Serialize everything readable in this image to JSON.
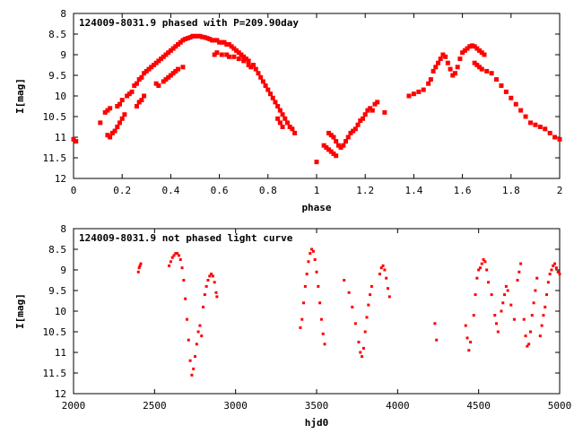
{
  "chart_data": [
    {
      "type": "scatter",
      "title": "124009-8031.9 phased with P=209.90day",
      "xlabel": "phase",
      "ylabel": "I[mag]",
      "xlim": [
        0,
        2
      ],
      "ylim": [
        12,
        8
      ],
      "y_inverted": true,
      "grid": false,
      "xticks": [
        "0",
        "0.2",
        "0.4",
        "0.6",
        "0.8",
        "1",
        "1.2",
        "1.4",
        "1.6",
        "1.8",
        "2"
      ],
      "yticks": [
        "8",
        "8.5",
        "9",
        "9.5",
        "10",
        "10.5",
        "11",
        "11.5",
        "12"
      ],
      "marker": "filled-square",
      "color": "#ff0000",
      "points": [
        [
          0.0,
          11.05
        ],
        [
          0.01,
          11.1
        ],
        [
          0.11,
          10.65
        ],
        [
          0.13,
          10.4
        ],
        [
          0.14,
          10.35
        ],
        [
          0.15,
          10.3
        ],
        [
          0.14,
          10.95
        ],
        [
          0.15,
          11.0
        ],
        [
          0.16,
          10.9
        ],
        [
          0.17,
          10.85
        ],
        [
          0.18,
          10.25
        ],
        [
          0.19,
          10.2
        ],
        [
          0.18,
          10.75
        ],
        [
          0.19,
          10.65
        ],
        [
          0.2,
          10.55
        ],
        [
          0.21,
          10.45
        ],
        [
          0.2,
          10.1
        ],
        [
          0.22,
          10.0
        ],
        [
          0.23,
          9.95
        ],
        [
          0.24,
          9.9
        ],
        [
          0.25,
          9.75
        ],
        [
          0.26,
          9.7
        ],
        [
          0.27,
          9.6
        ],
        [
          0.28,
          9.55
        ],
        [
          0.29,
          9.45
        ],
        [
          0.3,
          9.4
        ],
        [
          0.26,
          10.25
        ],
        [
          0.27,
          10.15
        ],
        [
          0.28,
          10.1
        ],
        [
          0.29,
          10.0
        ],
        [
          0.31,
          9.35
        ],
        [
          0.32,
          9.3
        ],
        [
          0.33,
          9.25
        ],
        [
          0.34,
          9.2
        ],
        [
          0.35,
          9.15
        ],
        [
          0.36,
          9.1
        ],
        [
          0.37,
          9.05
        ],
        [
          0.38,
          9.0
        ],
        [
          0.39,
          8.95
        ],
        [
          0.4,
          8.9
        ],
        [
          0.34,
          9.7
        ],
        [
          0.35,
          9.75
        ],
        [
          0.37,
          9.65
        ],
        [
          0.38,
          9.6
        ],
        [
          0.39,
          9.55
        ],
        [
          0.4,
          9.5
        ],
        [
          0.41,
          9.45
        ],
        [
          0.42,
          9.4
        ],
        [
          0.43,
          9.35
        ],
        [
          0.45,
          9.3
        ],
        [
          0.41,
          8.85
        ],
        [
          0.42,
          8.8
        ],
        [
          0.43,
          8.75
        ],
        [
          0.44,
          8.7
        ],
        [
          0.45,
          8.65
        ],
        [
          0.46,
          8.62
        ],
        [
          0.47,
          8.6
        ],
        [
          0.48,
          8.58
        ],
        [
          0.49,
          8.55
        ],
        [
          0.5,
          8.55
        ],
        [
          0.51,
          8.55
        ],
        [
          0.52,
          8.55
        ],
        [
          0.53,
          8.57
        ],
        [
          0.54,
          8.58
        ],
        [
          0.55,
          8.6
        ],
        [
          0.56,
          8.62
        ],
        [
          0.57,
          8.65
        ],
        [
          0.58,
          8.65
        ],
        [
          0.59,
          8.65
        ],
        [
          0.6,
          8.7
        ],
        [
          0.61,
          8.7
        ],
        [
          0.62,
          8.7
        ],
        [
          0.63,
          8.75
        ],
        [
          0.64,
          8.75
        ],
        [
          0.65,
          8.8
        ],
        [
          0.66,
          8.85
        ],
        [
          0.67,
          8.9
        ],
        [
          0.68,
          8.95
        ],
        [
          0.69,
          9.0
        ],
        [
          0.7,
          9.05
        ],
        [
          0.58,
          9.0
        ],
        [
          0.59,
          8.95
        ],
        [
          0.61,
          9.0
        ],
        [
          0.63,
          9.0
        ],
        [
          0.64,
          9.05
        ],
        [
          0.66,
          9.05
        ],
        [
          0.68,
          9.1
        ],
        [
          0.7,
          9.15
        ],
        [
          0.72,
          9.25
        ],
        [
          0.73,
          9.3
        ],
        [
          0.71,
          9.1
        ],
        [
          0.72,
          9.15
        ],
        [
          0.74,
          9.25
        ],
        [
          0.75,
          9.35
        ],
        [
          0.76,
          9.45
        ],
        [
          0.77,
          9.55
        ],
        [
          0.78,
          9.65
        ],
        [
          0.79,
          9.75
        ],
        [
          0.8,
          9.85
        ],
        [
          0.81,
          9.95
        ],
        [
          0.82,
          10.05
        ],
        [
          0.83,
          10.15
        ],
        [
          0.84,
          10.25
        ],
        [
          0.85,
          10.35
        ],
        [
          0.86,
          10.45
        ],
        [
          0.87,
          10.55
        ],
        [
          0.88,
          10.65
        ],
        [
          0.89,
          10.75
        ],
        [
          0.9,
          10.8
        ],
        [
          0.91,
          10.9
        ],
        [
          0.84,
          10.55
        ],
        [
          0.85,
          10.65
        ],
        [
          0.86,
          10.75
        ],
        [
          1.0,
          11.6
        ],
        [
          1.03,
          11.2
        ],
        [
          1.04,
          11.25
        ],
        [
          1.05,
          11.3
        ],
        [
          1.06,
          11.35
        ],
        [
          1.07,
          11.4
        ],
        [
          1.08,
          11.45
        ],
        [
          1.05,
          10.9
        ],
        [
          1.06,
          10.95
        ],
        [
          1.07,
          11.0
        ],
        [
          1.08,
          11.1
        ],
        [
          1.09,
          11.2
        ],
        [
          1.1,
          11.25
        ],
        [
          1.11,
          11.2
        ],
        [
          1.12,
          11.1
        ],
        [
          1.13,
          11.0
        ],
        [
          1.14,
          10.9
        ],
        [
          1.15,
          10.85
        ],
        [
          1.16,
          10.8
        ],
        [
          1.17,
          10.7
        ],
        [
          1.18,
          10.6
        ],
        [
          1.19,
          10.55
        ],
        [
          1.2,
          10.45
        ],
        [
          1.21,
          10.35
        ],
        [
          1.22,
          10.3
        ],
        [
          1.23,
          10.35
        ],
        [
          1.24,
          10.2
        ],
        [
          1.25,
          10.15
        ],
        [
          1.28,
          10.4
        ],
        [
          1.38,
          10.0
        ],
        [
          1.4,
          9.95
        ],
        [
          1.42,
          9.9
        ],
        [
          1.44,
          9.85
        ],
        [
          1.46,
          9.7
        ],
        [
          1.47,
          9.6
        ],
        [
          1.48,
          9.4
        ],
        [
          1.49,
          9.3
        ],
        [
          1.5,
          9.2
        ],
        [
          1.51,
          9.1
        ],
        [
          1.52,
          9.0
        ],
        [
          1.53,
          9.05
        ],
        [
          1.54,
          9.2
        ],
        [
          1.55,
          9.35
        ],
        [
          1.56,
          9.5
        ],
        [
          1.57,
          9.45
        ],
        [
          1.58,
          9.3
        ],
        [
          1.59,
          9.1
        ],
        [
          1.6,
          8.95
        ],
        [
          1.61,
          8.9
        ],
        [
          1.62,
          8.85
        ],
        [
          1.63,
          8.8
        ],
        [
          1.64,
          8.78
        ],
        [
          1.65,
          8.8
        ],
        [
          1.66,
          8.85
        ],
        [
          1.67,
          8.9
        ],
        [
          1.68,
          8.95
        ],
        [
          1.69,
          9.0
        ],
        [
          1.65,
          9.2
        ],
        [
          1.66,
          9.25
        ],
        [
          1.67,
          9.3
        ],
        [
          1.68,
          9.35
        ],
        [
          1.7,
          9.4
        ],
        [
          1.72,
          9.45
        ],
        [
          1.74,
          9.6
        ],
        [
          1.76,
          9.75
        ],
        [
          1.78,
          9.9
        ],
        [
          1.8,
          10.05
        ],
        [
          1.82,
          10.2
        ],
        [
          1.84,
          10.35
        ],
        [
          1.86,
          10.5
        ],
        [
          1.88,
          10.65
        ],
        [
          1.9,
          10.7
        ],
        [
          1.92,
          10.75
        ],
        [
          1.94,
          10.8
        ],
        [
          1.96,
          10.9
        ],
        [
          1.98,
          11.0
        ],
        [
          2.0,
          11.05
        ]
      ]
    },
    {
      "type": "scatter",
      "title": "124009-8031.9 not phased light curve",
      "xlabel": "hjd0",
      "ylabel": "I[mag]",
      "xlim": [
        2000,
        5000
      ],
      "ylim": [
        12,
        8
      ],
      "y_inverted": true,
      "grid": false,
      "xticks": [
        "2000",
        "2500",
        "3000",
        "3500",
        "4000",
        "4500",
        "5000"
      ],
      "yticks": [
        "8",
        "8.5",
        "9",
        "9.5",
        "10",
        "10.5",
        "11",
        "11.5",
        "12"
      ],
      "marker": "small-diamond",
      "color": "#ff0000",
      "points": [
        [
          2400,
          9.05
        ],
        [
          2405,
          8.95
        ],
        [
          2410,
          8.9
        ],
        [
          2415,
          8.85
        ],
        [
          2590,
          8.9
        ],
        [
          2600,
          8.8
        ],
        [
          2610,
          8.7
        ],
        [
          2620,
          8.65
        ],
        [
          2630,
          8.6
        ],
        [
          2640,
          8.6
        ],
        [
          2650,
          8.65
        ],
        [
          2660,
          8.75
        ],
        [
          2670,
          8.95
        ],
        [
          2680,
          9.25
        ],
        [
          2690,
          9.7
        ],
        [
          2700,
          10.2
        ],
        [
          2710,
          10.7
        ],
        [
          2720,
          11.2
        ],
        [
          2730,
          11.55
        ],
        [
          2740,
          11.4
        ],
        [
          2750,
          11.1
        ],
        [
          2760,
          10.8
        ],
        [
          2770,
          10.5
        ],
        [
          2780,
          10.35
        ],
        [
          2790,
          10.6
        ],
        [
          2800,
          9.9
        ],
        [
          2810,
          9.6
        ],
        [
          2820,
          9.4
        ],
        [
          2830,
          9.25
        ],
        [
          2840,
          9.15
        ],
        [
          2850,
          9.1
        ],
        [
          2860,
          9.15
        ],
        [
          2870,
          9.3
        ],
        [
          2880,
          9.55
        ],
        [
          2885,
          9.65
        ],
        [
          3400,
          10.4
        ],
        [
          3410,
          10.2
        ],
        [
          3420,
          9.8
        ],
        [
          3430,
          9.4
        ],
        [
          3440,
          9.1
        ],
        [
          3450,
          8.8
        ],
        [
          3460,
          8.6
        ],
        [
          3470,
          8.5
        ],
        [
          3480,
          8.55
        ],
        [
          3490,
          8.75
        ],
        [
          3500,
          9.05
        ],
        [
          3510,
          9.4
        ],
        [
          3520,
          9.8
        ],
        [
          3530,
          10.2
        ],
        [
          3540,
          10.55
        ],
        [
          3550,
          10.8
        ],
        [
          3670,
          9.25
        ],
        [
          3700,
          9.55
        ],
        [
          3720,
          9.9
        ],
        [
          3740,
          10.3
        ],
        [
          3760,
          10.75
        ],
        [
          3770,
          11.0
        ],
        [
          3780,
          11.1
        ],
        [
          3790,
          10.9
        ],
        [
          3800,
          10.5
        ],
        [
          3810,
          10.15
        ],
        [
          3820,
          9.85
        ],
        [
          3830,
          9.6
        ],
        [
          3840,
          9.4
        ],
        [
          3890,
          9.1
        ],
        [
          3900,
          8.95
        ],
        [
          3910,
          8.9
        ],
        [
          3920,
          9.0
        ],
        [
          3930,
          9.2
        ],
        [
          3940,
          9.45
        ],
        [
          3950,
          9.65
        ],
        [
          4230,
          10.3
        ],
        [
          4240,
          10.7
        ],
        [
          4420,
          10.35
        ],
        [
          4430,
          10.65
        ],
        [
          4440,
          10.95
        ],
        [
          4450,
          10.75
        ],
        [
          4470,
          10.1
        ],
        [
          4480,
          9.6
        ],
        [
          4490,
          9.2
        ],
        [
          4500,
          9.0
        ],
        [
          4510,
          8.95
        ],
        [
          4520,
          8.85
        ],
        [
          4530,
          8.75
        ],
        [
          4540,
          8.8
        ],
        [
          4550,
          9.0
        ],
        [
          4560,
          9.3
        ],
        [
          4580,
          9.6
        ],
        [
          4600,
          10.1
        ],
        [
          4610,
          10.3
        ],
        [
          4620,
          10.5
        ],
        [
          4640,
          10.0
        ],
        [
          4650,
          9.8
        ],
        [
          4660,
          9.6
        ],
        [
          4670,
          9.4
        ],
        [
          4680,
          9.5
        ],
        [
          4700,
          9.85
        ],
        [
          4720,
          10.2
        ],
        [
          4740,
          9.25
        ],
        [
          4750,
          9.05
        ],
        [
          4760,
          8.85
        ],
        [
          4780,
          10.2
        ],
        [
          4790,
          10.6
        ],
        [
          4800,
          10.85
        ],
        [
          4810,
          10.8
        ],
        [
          4820,
          10.5
        ],
        [
          4830,
          10.1
        ],
        [
          4840,
          9.8
        ],
        [
          4850,
          9.5
        ],
        [
          4860,
          9.2
        ],
        [
          4880,
          10.6
        ],
        [
          4890,
          10.35
        ],
        [
          4900,
          10.1
        ],
        [
          4910,
          9.9
        ],
        [
          4920,
          9.6
        ],
        [
          4930,
          9.3
        ],
        [
          4940,
          9.1
        ],
        [
          4950,
          9.0
        ],
        [
          4960,
          8.9
        ],
        [
          4970,
          8.85
        ],
        [
          4980,
          8.95
        ],
        [
          4990,
          9.05
        ],
        [
          5000,
          9.1
        ]
      ]
    }
  ]
}
